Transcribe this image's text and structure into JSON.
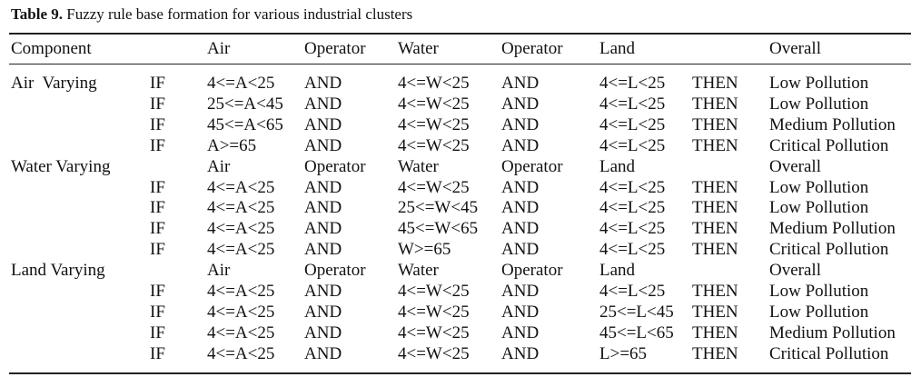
{
  "caption": {
    "label": "Table 9.",
    "text": "Fuzzy rule base formation for various industrial clusters"
  },
  "table": {
    "header": {
      "component": "Component",
      "air": "Air",
      "op1": "Operator",
      "water": "Water",
      "op2": "Operator",
      "land": "Land",
      "overall": "Overall"
    },
    "rows": [
      {
        "component": "Air  Varying",
        "if": "IF",
        "air": "4<=A<25",
        "op1": "AND",
        "water": "4<=W<25",
        "op2": "AND",
        "land": "4<=L<25",
        "then": "THEN",
        "overall": "Low Pollution"
      },
      {
        "if": "IF",
        "air": "25<=A<45",
        "op1": "AND",
        "water": "4<=W<25",
        "op2": "AND",
        "land": "4<=L<25",
        "then": "THEN",
        "overall": "Low Pollution"
      },
      {
        "if": "IF",
        "air": "45<=A<65",
        "op1": "AND",
        "water": "4<=W<25",
        "op2": "AND",
        "land": "4<=L<25",
        "then": "THEN",
        "overall": "Medium Pollution"
      },
      {
        "if": "IF",
        "air": "A>=65",
        "op1": "AND",
        "water": "4<=W<25",
        "op2": "AND",
        "land": "4<=L<25",
        "then": "THEN",
        "overall": "Critical Pollution"
      },
      {
        "component": "Water Varying",
        "air": "Air",
        "op1": "Operator",
        "water": "Water",
        "op2": "Operator",
        "land": "Land",
        "overall": "Overall"
      },
      {
        "if": "IF",
        "air": "4<=A<25",
        "op1": "AND",
        "water": "4<=W<25",
        "op2": "AND",
        "land": "4<=L<25",
        "then": "THEN",
        "overall": "Low Pollution"
      },
      {
        "if": "IF",
        "air": "4<=A<25",
        "op1": "AND",
        "water": "25<=W<45",
        "op2": "AND",
        "land": "4<=L<25",
        "then": "THEN",
        "overall": "Low Pollution"
      },
      {
        "if": "IF",
        "air": "4<=A<25",
        "op1": "AND",
        "water": "45<=W<65",
        "op2": "AND",
        "land": "4<=L<25",
        "then": "THEN",
        "overall": "Medium Pollution"
      },
      {
        "if": "IF",
        "air": "4<=A<25",
        "op1": "AND",
        "water": "W>=65",
        "op2": "AND",
        "land": "4<=L<25",
        "then": "THEN",
        "overall": "Critical Pollution"
      },
      {
        "component": "Land Varying",
        "air": "Air",
        "op1": "Operator",
        "water": "Water",
        "op2": "Operator",
        "land": "Land",
        "overall": "Overall"
      },
      {
        "if": "IF",
        "air": "4<=A<25",
        "op1": "AND",
        "water": "4<=W<25",
        "op2": "AND",
        "land": "4<=L<25",
        "then": "THEN",
        "overall": "Low Pollution"
      },
      {
        "if": "IF",
        "air": "4<=A<25",
        "op1": "AND",
        "water": "4<=W<25",
        "op2": "AND",
        "land": "25<=L<45",
        "then": "THEN",
        "overall": "Low Pollution"
      },
      {
        "if": "IF",
        "air": "4<=A<25",
        "op1": "AND",
        "water": "4<=W<25",
        "op2": "AND",
        "land": "45<=L<65",
        "then": "THEN",
        "overall": "Medium Pollution"
      },
      {
        "if": "IF",
        "air": "4<=A<25",
        "op1": "AND",
        "water": "4<=W<25",
        "op2": "AND",
        "land": "L>=65",
        "then": "THEN",
        "overall": "Critical Pollution"
      }
    ]
  }
}
